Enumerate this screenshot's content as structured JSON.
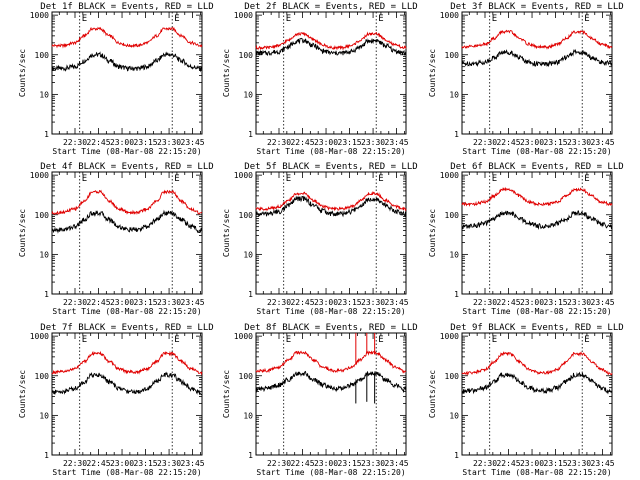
{
  "figure": {
    "colors": {
      "events": "#000000",
      "lld": "#e00000",
      "axes": "#000000",
      "background": "#ffffff"
    },
    "xtick_labels": [
      "22:30",
      "22:45",
      "23:00",
      "23:15",
      "23:30",
      "23:45"
    ],
    "ytick_labels": [
      "1",
      "10",
      "100",
      "1000"
    ],
    "ylabel": "Counts/sec",
    "xlabel": "Start Time (08-Mar-08 22:15:20)",
    "marker_labels": [
      "E",
      "E"
    ]
  },
  "chart_data": [
    {
      "type": "line",
      "title": "Det 1f BLACK = Events, RED = LLD",
      "ylim": [
        1,
        1200
      ],
      "yscale": "log",
      "x": [
        "22:15:20",
        "22:22",
        "22:30",
        "22:36",
        "22:41",
        "22:46",
        "22:52",
        "22:58",
        "23:04",
        "23:10",
        "23:16",
        "23:22",
        "23:27",
        "23:32",
        "23:38",
        "23:44",
        "23:50"
      ],
      "series": [
        {
          "name": "Events",
          "values": [
            45,
            45,
            50,
            70,
            100,
            100,
            70,
            50,
            45,
            45,
            50,
            70,
            100,
            100,
            70,
            50,
            45
          ]
        },
        {
          "name": "LLD",
          "values": [
            170,
            170,
            200,
            300,
            450,
            450,
            300,
            200,
            170,
            170,
            200,
            300,
            450,
            450,
            300,
            200,
            170
          ]
        }
      ],
      "vlines": [
        "22:33",
        "23:32"
      ]
    },
    {
      "type": "line",
      "title": "Det 2f BLACK = Events, RED = LLD",
      "ylim": [
        1,
        1200
      ],
      "yscale": "log",
      "x": [
        "22:15:20",
        "22:22",
        "22:30",
        "22:36",
        "22:41",
        "22:46",
        "22:52",
        "22:58",
        "23:04",
        "23:10",
        "23:16",
        "23:22",
        "23:27",
        "23:32",
        "23:38",
        "23:44",
        "23:50"
      ],
      "series": [
        {
          "name": "Events",
          "values": [
            110,
            110,
            120,
            160,
            220,
            230,
            170,
            125,
            110,
            110,
            120,
            160,
            220,
            230,
            170,
            125,
            110
          ]
        },
        {
          "name": "LLD",
          "values": [
            150,
            150,
            170,
            230,
            330,
            340,
            240,
            175,
            150,
            150,
            170,
            230,
            330,
            340,
            240,
            175,
            150
          ]
        }
      ],
      "vlines": [
        "22:33",
        "23:32"
      ]
    },
    {
      "type": "line",
      "title": "Det 3f BLACK = Events, RED = LLD",
      "ylim": [
        1,
        1200
      ],
      "yscale": "log",
      "x": [
        "22:15:20",
        "22:22",
        "22:30",
        "22:36",
        "22:41",
        "22:46",
        "22:52",
        "22:58",
        "23:04",
        "23:10",
        "23:16",
        "23:22",
        "23:27",
        "23:32",
        "23:38",
        "23:44",
        "23:50"
      ],
      "series": [
        {
          "name": "Events",
          "values": [
            60,
            60,
            65,
            85,
            115,
            115,
            85,
            65,
            58,
            58,
            65,
            85,
            115,
            115,
            85,
            65,
            60
          ]
        },
        {
          "name": "LLD",
          "values": [
            160,
            160,
            185,
            260,
            380,
            380,
            260,
            185,
            155,
            155,
            185,
            260,
            380,
            380,
            260,
            185,
            160
          ]
        }
      ],
      "vlines": [
        "22:33",
        "23:32"
      ]
    },
    {
      "type": "line",
      "title": "Det 4f BLACK = Events, RED = LLD",
      "ylim": [
        1,
        1200
      ],
      "yscale": "log",
      "x": [
        "22:15:20",
        "22:22",
        "22:30",
        "22:36",
        "22:41",
        "22:46",
        "22:52",
        "22:58",
        "23:04",
        "23:10",
        "23:16",
        "23:22",
        "23:27",
        "23:32",
        "23:38",
        "23:44",
        "23:50"
      ],
      "series": [
        {
          "name": "Events",
          "values": [
            40,
            42,
            50,
            75,
            110,
            110,
            75,
            50,
            42,
            42,
            50,
            75,
            110,
            110,
            75,
            50,
            40
          ]
        },
        {
          "name": "LLD",
          "values": [
            110,
            115,
            140,
            220,
            380,
            380,
            220,
            140,
            115,
            115,
            140,
            220,
            380,
            380,
            220,
            140,
            110
          ]
        }
      ],
      "vlines": [
        "22:33",
        "23:32"
      ]
    },
    {
      "type": "line",
      "title": "Det 5f BLACK = Events, RED = LLD",
      "ylim": [
        1,
        1200
      ],
      "yscale": "log",
      "x": [
        "22:15:20",
        "22:22",
        "22:30",
        "22:36",
        "22:41",
        "22:46",
        "22:52",
        "22:58",
        "23:04",
        "23:10",
        "23:16",
        "23:22",
        "23:27",
        "23:32",
        "23:38",
        "23:44",
        "23:50"
      ],
      "series": [
        {
          "name": "Events",
          "values": [
            105,
            105,
            120,
            170,
            250,
            255,
            175,
            125,
            105,
            105,
            120,
            170,
            250,
            255,
            175,
            125,
            105
          ]
        },
        {
          "name": "LLD",
          "values": [
            140,
            140,
            160,
            225,
            340,
            345,
            230,
            165,
            140,
            140,
            160,
            225,
            340,
            345,
            230,
            165,
            140
          ]
        }
      ],
      "vlines": [
        "22:33",
        "23:32"
      ]
    },
    {
      "type": "line",
      "title": "Det 6f BLACK = Events, RED = LLD",
      "ylim": [
        1,
        1200
      ],
      "yscale": "log",
      "x": [
        "22:15:20",
        "22:22",
        "22:30",
        "22:36",
        "22:41",
        "22:46",
        "22:52",
        "22:58",
        "23:04",
        "23:10",
        "23:16",
        "23:22",
        "23:27",
        "23:32",
        "23:38",
        "23:44",
        "23:50"
      ],
      "series": [
        {
          "name": "Events",
          "values": [
            50,
            52,
            60,
            80,
            110,
            110,
            80,
            60,
            52,
            52,
            60,
            80,
            110,
            110,
            80,
            60,
            50
          ]
        },
        {
          "name": "LLD",
          "values": [
            185,
            185,
            210,
            300,
            430,
            430,
            300,
            210,
            185,
            185,
            210,
            300,
            430,
            430,
            300,
            210,
            185
          ]
        }
      ],
      "vlines": [
        "22:33",
        "23:32"
      ]
    },
    {
      "type": "line",
      "title": "Det 7f BLACK = Events, RED = LLD",
      "ylim": [
        1,
        1200
      ],
      "yscale": "log",
      "x": [
        "22:15:20",
        "22:22",
        "22:30",
        "22:36",
        "22:41",
        "22:46",
        "22:52",
        "22:58",
        "23:04",
        "23:10",
        "23:16",
        "23:22",
        "23:27",
        "23:32",
        "23:38",
        "23:44",
        "23:50"
      ],
      "series": [
        {
          "name": "Events",
          "values": [
            38,
            40,
            48,
            70,
            105,
            105,
            70,
            48,
            40,
            40,
            48,
            70,
            105,
            105,
            70,
            48,
            38
          ]
        },
        {
          "name": "LLD",
          "values": [
            120,
            125,
            150,
            230,
            360,
            360,
            230,
            150,
            125,
            125,
            150,
            230,
            360,
            360,
            230,
            150,
            120
          ]
        }
      ],
      "vlines": [
        "22:33",
        "23:32"
      ]
    },
    {
      "type": "line",
      "title": "Det 8f BLACK = Events, RED = LLD",
      "ylim": [
        1,
        1200
      ],
      "yscale": "log",
      "x": [
        "22:15:20",
        "22:22",
        "22:30",
        "22:36",
        "22:41",
        "22:46",
        "22:52",
        "22:58",
        "23:04",
        "23:10",
        "23:16",
        "23:22",
        "23:27",
        "23:32",
        "23:38",
        "23:44",
        "23:50"
      ],
      "series": [
        {
          "name": "Events",
          "values": [
            45,
            48,
            58,
            80,
            115,
            115,
            80,
            58,
            48,
            48,
            58,
            80,
            115,
            115,
            80,
            58,
            45
          ]
        },
        {
          "name": "LLD",
          "values": [
            130,
            135,
            165,
            250,
            380,
            380,
            250,
            165,
            135,
            135,
            165,
            250,
            380,
            380,
            250,
            165,
            130
          ]
        }
      ],
      "vlines": [
        "22:33",
        "23:32"
      ],
      "spikes": [
        {
          "x": "23:19",
          "lld_top": 1200,
          "events_low": 20
        },
        {
          "x": "23:26",
          "lld_top": 1200,
          "events_low": 22
        },
        {
          "x": "23:31",
          "lld_top": 1200,
          "events_low": 20
        }
      ]
    },
    {
      "type": "line",
      "title": "Det 9f BLACK = Events, RED = LLD",
      "ylim": [
        1,
        1200
      ],
      "yscale": "log",
      "x": [
        "22:15:20",
        "22:22",
        "22:30",
        "22:36",
        "22:41",
        "22:46",
        "22:52",
        "22:58",
        "23:04",
        "23:10",
        "23:16",
        "23:22",
        "23:27",
        "23:32",
        "23:38",
        "23:44",
        "23:50"
      ],
      "series": [
        {
          "name": "Events",
          "values": [
            40,
            42,
            50,
            72,
            105,
            105,
            72,
            50,
            42,
            42,
            50,
            72,
            105,
            105,
            72,
            50,
            40
          ]
        },
        {
          "name": "LLD",
          "values": [
            115,
            120,
            145,
            225,
            360,
            360,
            225,
            145,
            120,
            120,
            145,
            225,
            360,
            360,
            225,
            145,
            115
          ]
        }
      ],
      "vlines": [
        "22:33",
        "23:32"
      ]
    }
  ]
}
